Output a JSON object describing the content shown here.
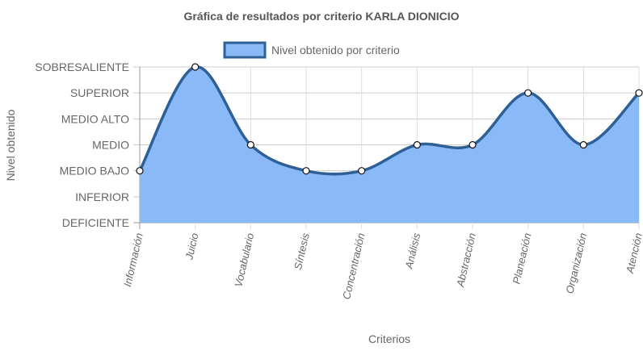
{
  "chart_data": {
    "type": "area",
    "title": "Gráfica de resultados por criterio KARLA DIONICIO",
    "xlabel": "Criterios",
    "ylabel": "Nivel obtenido",
    "levels": [
      "DEFICIENTE",
      "INFERIOR",
      "MEDIO BAJO",
      "MEDIO",
      "MEDIO ALTO",
      "SUPERIOR",
      "SOBRESALIENTE"
    ],
    "categories": [
      "Información",
      "Juicio",
      "Vocabulario",
      "Síntesis",
      "Concentración",
      "Análisis",
      "Abstracción",
      "Planeación",
      "Organización",
      "Atención"
    ],
    "series": [
      {
        "name": "Nivel obtenido por criterio",
        "values": [
          "MEDIO BAJO",
          "SOBRESALIENTE",
          "MEDIO",
          "MEDIO BAJO",
          "MEDIO BAJO",
          "MEDIO",
          "MEDIO",
          "SUPERIOR",
          "MEDIO",
          "SUPERIOR"
        ],
        "fill_color": "#8ab9f8",
        "line_color": "#2e5f95"
      }
    ],
    "legend_position": "top",
    "grid": true
  }
}
